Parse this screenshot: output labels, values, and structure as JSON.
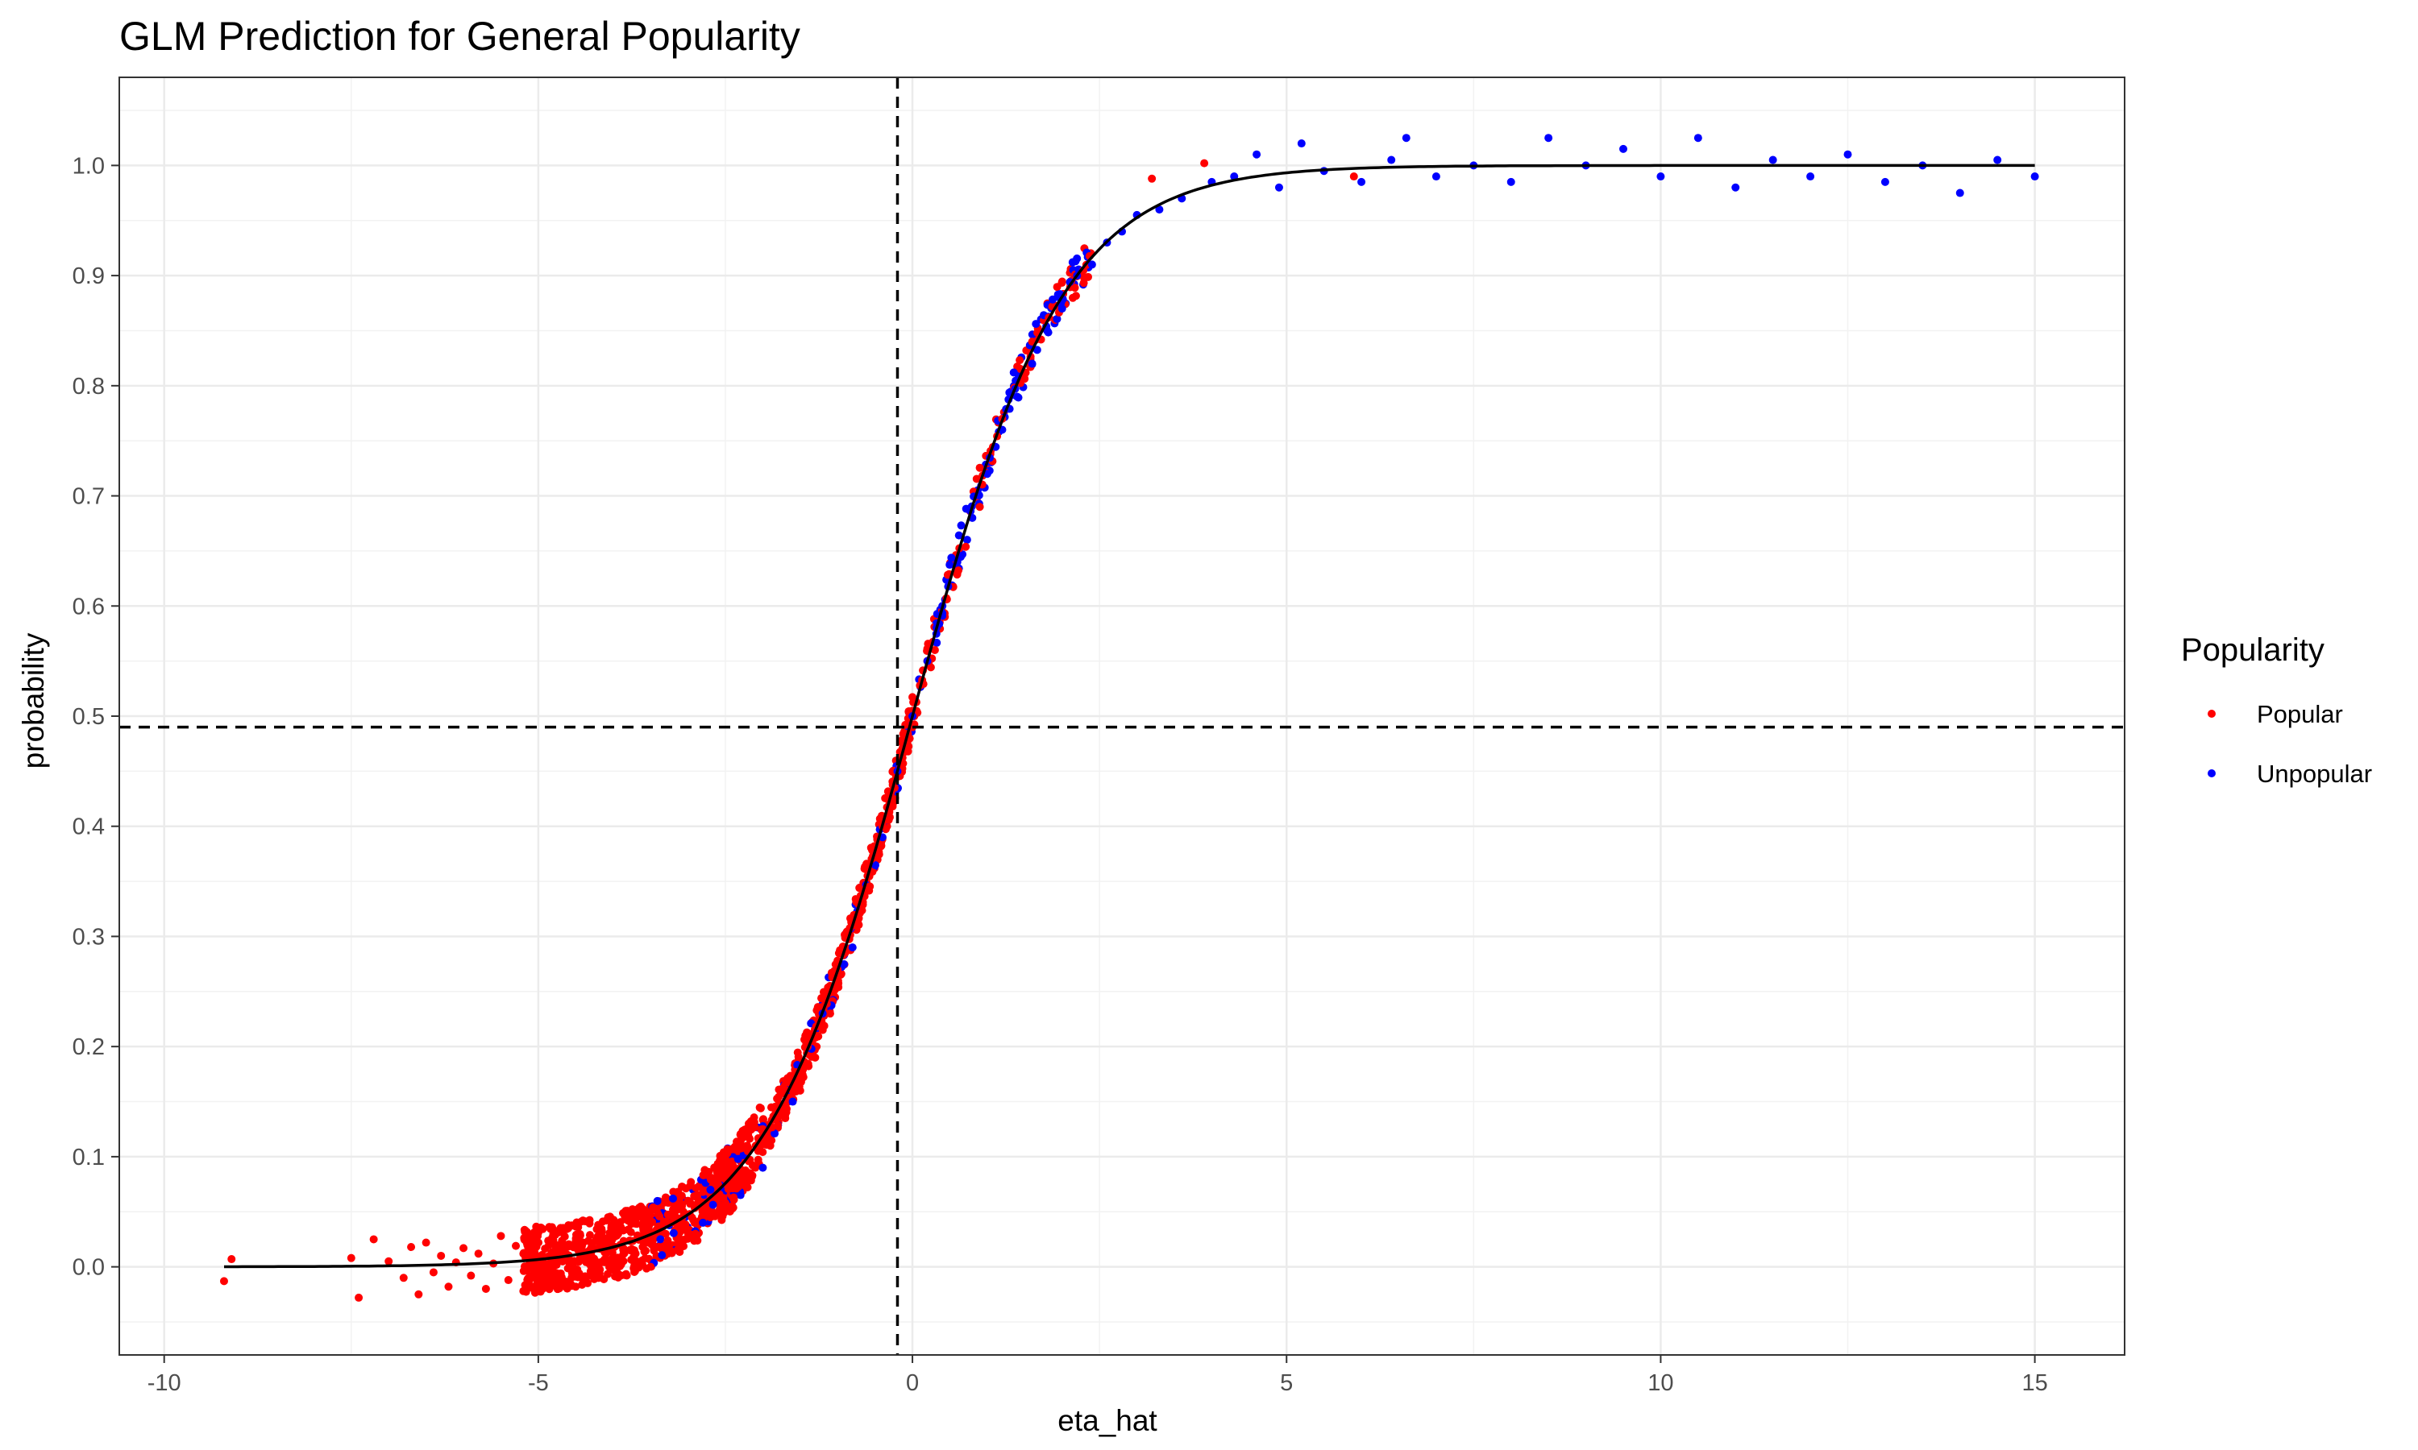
{
  "chart_data": {
    "type": "scatter",
    "title": "GLM Prediction for General Popularity",
    "xlabel": "eta_hat",
    "ylabel": "probability",
    "xlim": [
      -10.6,
      16.2
    ],
    "ylim": [
      -0.08,
      1.08
    ],
    "x_ticks": [
      -10,
      -5,
      0,
      5,
      10,
      15
    ],
    "x_tick_labels": [
      "-10",
      "-5",
      "0",
      "5",
      "10",
      "15"
    ],
    "y_ticks": [
      0.0,
      0.1,
      0.2,
      0.3,
      0.4,
      0.5,
      0.6,
      0.7,
      0.8,
      0.9,
      1.0
    ],
    "y_tick_labels": [
      "0.0",
      "0.1",
      "0.2",
      "0.3",
      "0.4",
      "0.5",
      "0.6",
      "0.7",
      "0.8",
      "0.9",
      "1.0"
    ],
    "grid": true,
    "legend": {
      "title": "Popularity",
      "position": "right",
      "entries": [
        {
          "label": "Popular",
          "color": "#ff0000"
        },
        {
          "label": "Unpopular",
          "color": "#0000ff"
        }
      ]
    },
    "fitted_curve": {
      "function": "logistic",
      "x_range": [
        -9.2,
        15.0
      ],
      "color": "#000000"
    },
    "reference_lines": [
      {
        "orientation": "vertical",
        "value": -0.2,
        "style": "dashed"
      },
      {
        "orientation": "horizontal",
        "value": 0.49,
        "style": "dashed"
      }
    ],
    "series": [
      {
        "name": "Popular",
        "color": "#ff0000",
        "points": [
          [
            -9.2,
            -0.013
          ],
          [
            -9.1,
            0.007
          ],
          [
            -7.5,
            0.008
          ],
          [
            -7.4,
            -0.028
          ],
          [
            -7.2,
            0.025
          ],
          [
            -7.0,
            0.005
          ],
          [
            -6.8,
            -0.01
          ],
          [
            -6.7,
            0.018
          ],
          [
            -6.6,
            -0.025
          ],
          [
            -6.5,
            0.022
          ],
          [
            -6.4,
            -0.005
          ],
          [
            -6.3,
            0.01
          ],
          [
            -6.2,
            -0.018
          ],
          [
            -6.1,
            0.004
          ],
          [
            -6.0,
            0.017
          ],
          [
            -5.9,
            -0.008
          ],
          [
            -5.8,
            0.012
          ],
          [
            -5.7,
            -0.02
          ],
          [
            -5.6,
            0.003
          ],
          [
            -5.5,
            0.028
          ],
          [
            -5.4,
            -0.012
          ],
          [
            -5.3,
            0.019
          ],
          [
            -5.2,
            -0.022
          ],
          [
            -5.1,
            0.008
          ],
          [
            -5.0,
            0.031
          ],
          [
            -4.9,
            -0.015
          ],
          [
            -4.8,
            0.024
          ],
          [
            -4.7,
            -0.006
          ],
          [
            -4.6,
            0.035
          ],
          [
            -4.5,
            -0.018
          ],
          [
            -4.4,
            0.022
          ],
          [
            -4.3,
            -0.004
          ],
          [
            -4.2,
            0.038
          ],
          [
            -4.1,
            0.005
          ],
          [
            -4.0,
            0.03
          ],
          [
            -3.9,
            -0.008
          ],
          [
            -3.8,
            0.042
          ],
          [
            -3.7,
            0.012
          ],
          [
            -3.6,
            0.036
          ],
          [
            -3.5,
            0.0
          ],
          [
            -3.4,
            0.048
          ],
          [
            -3.3,
            0.018
          ],
          [
            -3.2,
            0.052
          ],
          [
            -3.1,
            0.025
          ],
          [
            -3.0,
            0.06
          ],
          [
            -2.9,
            0.03
          ],
          [
            -2.8,
            0.068
          ],
          [
            -2.7,
            0.045
          ],
          [
            -2.6,
            0.08
          ],
          [
            -2.5,
            0.058
          ],
          [
            -2.4,
            0.092
          ],
          [
            -2.3,
            0.075
          ],
          [
            -2.2,
            0.105
          ],
          [
            -2.1,
            0.09
          ],
          [
            -2.0,
            0.125
          ],
          [
            -1.9,
            0.11
          ],
          [
            -1.8,
            0.145
          ],
          [
            -1.7,
            0.135
          ],
          [
            -1.6,
            0.17
          ],
          [
            -1.5,
            0.16
          ],
          [
            -1.4,
            0.2
          ],
          [
            -1.3,
            0.19
          ],
          [
            -1.2,
            0.235
          ],
          [
            -1.1,
            0.23
          ],
          [
            -1.0,
            0.27
          ],
          [
            -0.9,
            0.285
          ],
          [
            -0.8,
            0.31
          ],
          [
            -0.7,
            0.33
          ],
          [
            -0.6,
            0.355
          ],
          [
            -0.5,
            0.375
          ],
          [
            -0.4,
            0.4
          ],
          [
            -0.3,
            0.42
          ],
          [
            -0.2,
            0.445
          ],
          [
            -0.1,
            0.47
          ],
          [
            0.0,
            0.49
          ],
          [
            0.3,
            0.56
          ],
          [
            0.6,
            0.63
          ],
          [
            0.9,
            0.69
          ],
          [
            1.2,
            0.77
          ],
          [
            1.6,
            0.84
          ],
          [
            3.2,
            0.988
          ],
          [
            3.9,
            1.002
          ],
          [
            5.9,
            0.99
          ]
        ]
      },
      {
        "name": "Unpopular",
        "color": "#0000ff",
        "points": [
          [
            -3.2,
            0.062
          ],
          [
            -2.8,
            0.04
          ],
          [
            -2.7,
            0.07
          ],
          [
            -2.0,
            0.09
          ],
          [
            -1.6,
            0.15
          ],
          [
            -1.2,
            0.23
          ],
          [
            -0.8,
            0.29
          ],
          [
            -0.4,
            0.39
          ],
          [
            -0.2,
            0.45
          ],
          [
            0.0,
            0.5
          ],
          [
            0.2,
            0.55
          ],
          [
            0.4,
            0.6
          ],
          [
            0.6,
            0.64
          ],
          [
            0.8,
            0.68
          ],
          [
            1.0,
            0.72
          ],
          [
            1.2,
            0.76
          ],
          [
            1.4,
            0.79
          ],
          [
            1.6,
            0.82
          ],
          [
            1.8,
            0.85
          ],
          [
            2.0,
            0.87
          ],
          [
            2.2,
            0.9
          ],
          [
            2.4,
            0.91
          ],
          [
            2.6,
            0.93
          ],
          [
            2.8,
            0.94
          ],
          [
            3.0,
            0.955
          ],
          [
            3.3,
            0.96
          ],
          [
            3.6,
            0.97
          ],
          [
            4.0,
            0.985
          ],
          [
            4.3,
            0.99
          ],
          [
            4.6,
            1.01
          ],
          [
            4.9,
            0.98
          ],
          [
            5.2,
            1.02
          ],
          [
            5.5,
            0.995
          ],
          [
            6.0,
            0.985
          ],
          [
            6.4,
            1.005
          ],
          [
            6.6,
            1.025
          ],
          [
            7.0,
            0.99
          ],
          [
            7.5,
            1.0
          ],
          [
            8.0,
            0.985
          ],
          [
            8.5,
            1.025
          ],
          [
            9.0,
            1.0
          ],
          [
            9.5,
            1.015
          ],
          [
            10.0,
            0.99
          ],
          [
            10.5,
            1.025
          ],
          [
            11.0,
            0.98
          ],
          [
            11.5,
            1.005
          ],
          [
            12.0,
            0.99
          ],
          [
            12.5,
            1.01
          ],
          [
            13.0,
            0.985
          ],
          [
            13.5,
            1.0
          ],
          [
            14.0,
            0.975
          ],
          [
            14.5,
            1.005
          ],
          [
            15.0,
            0.99
          ]
        ]
      }
    ]
  }
}
